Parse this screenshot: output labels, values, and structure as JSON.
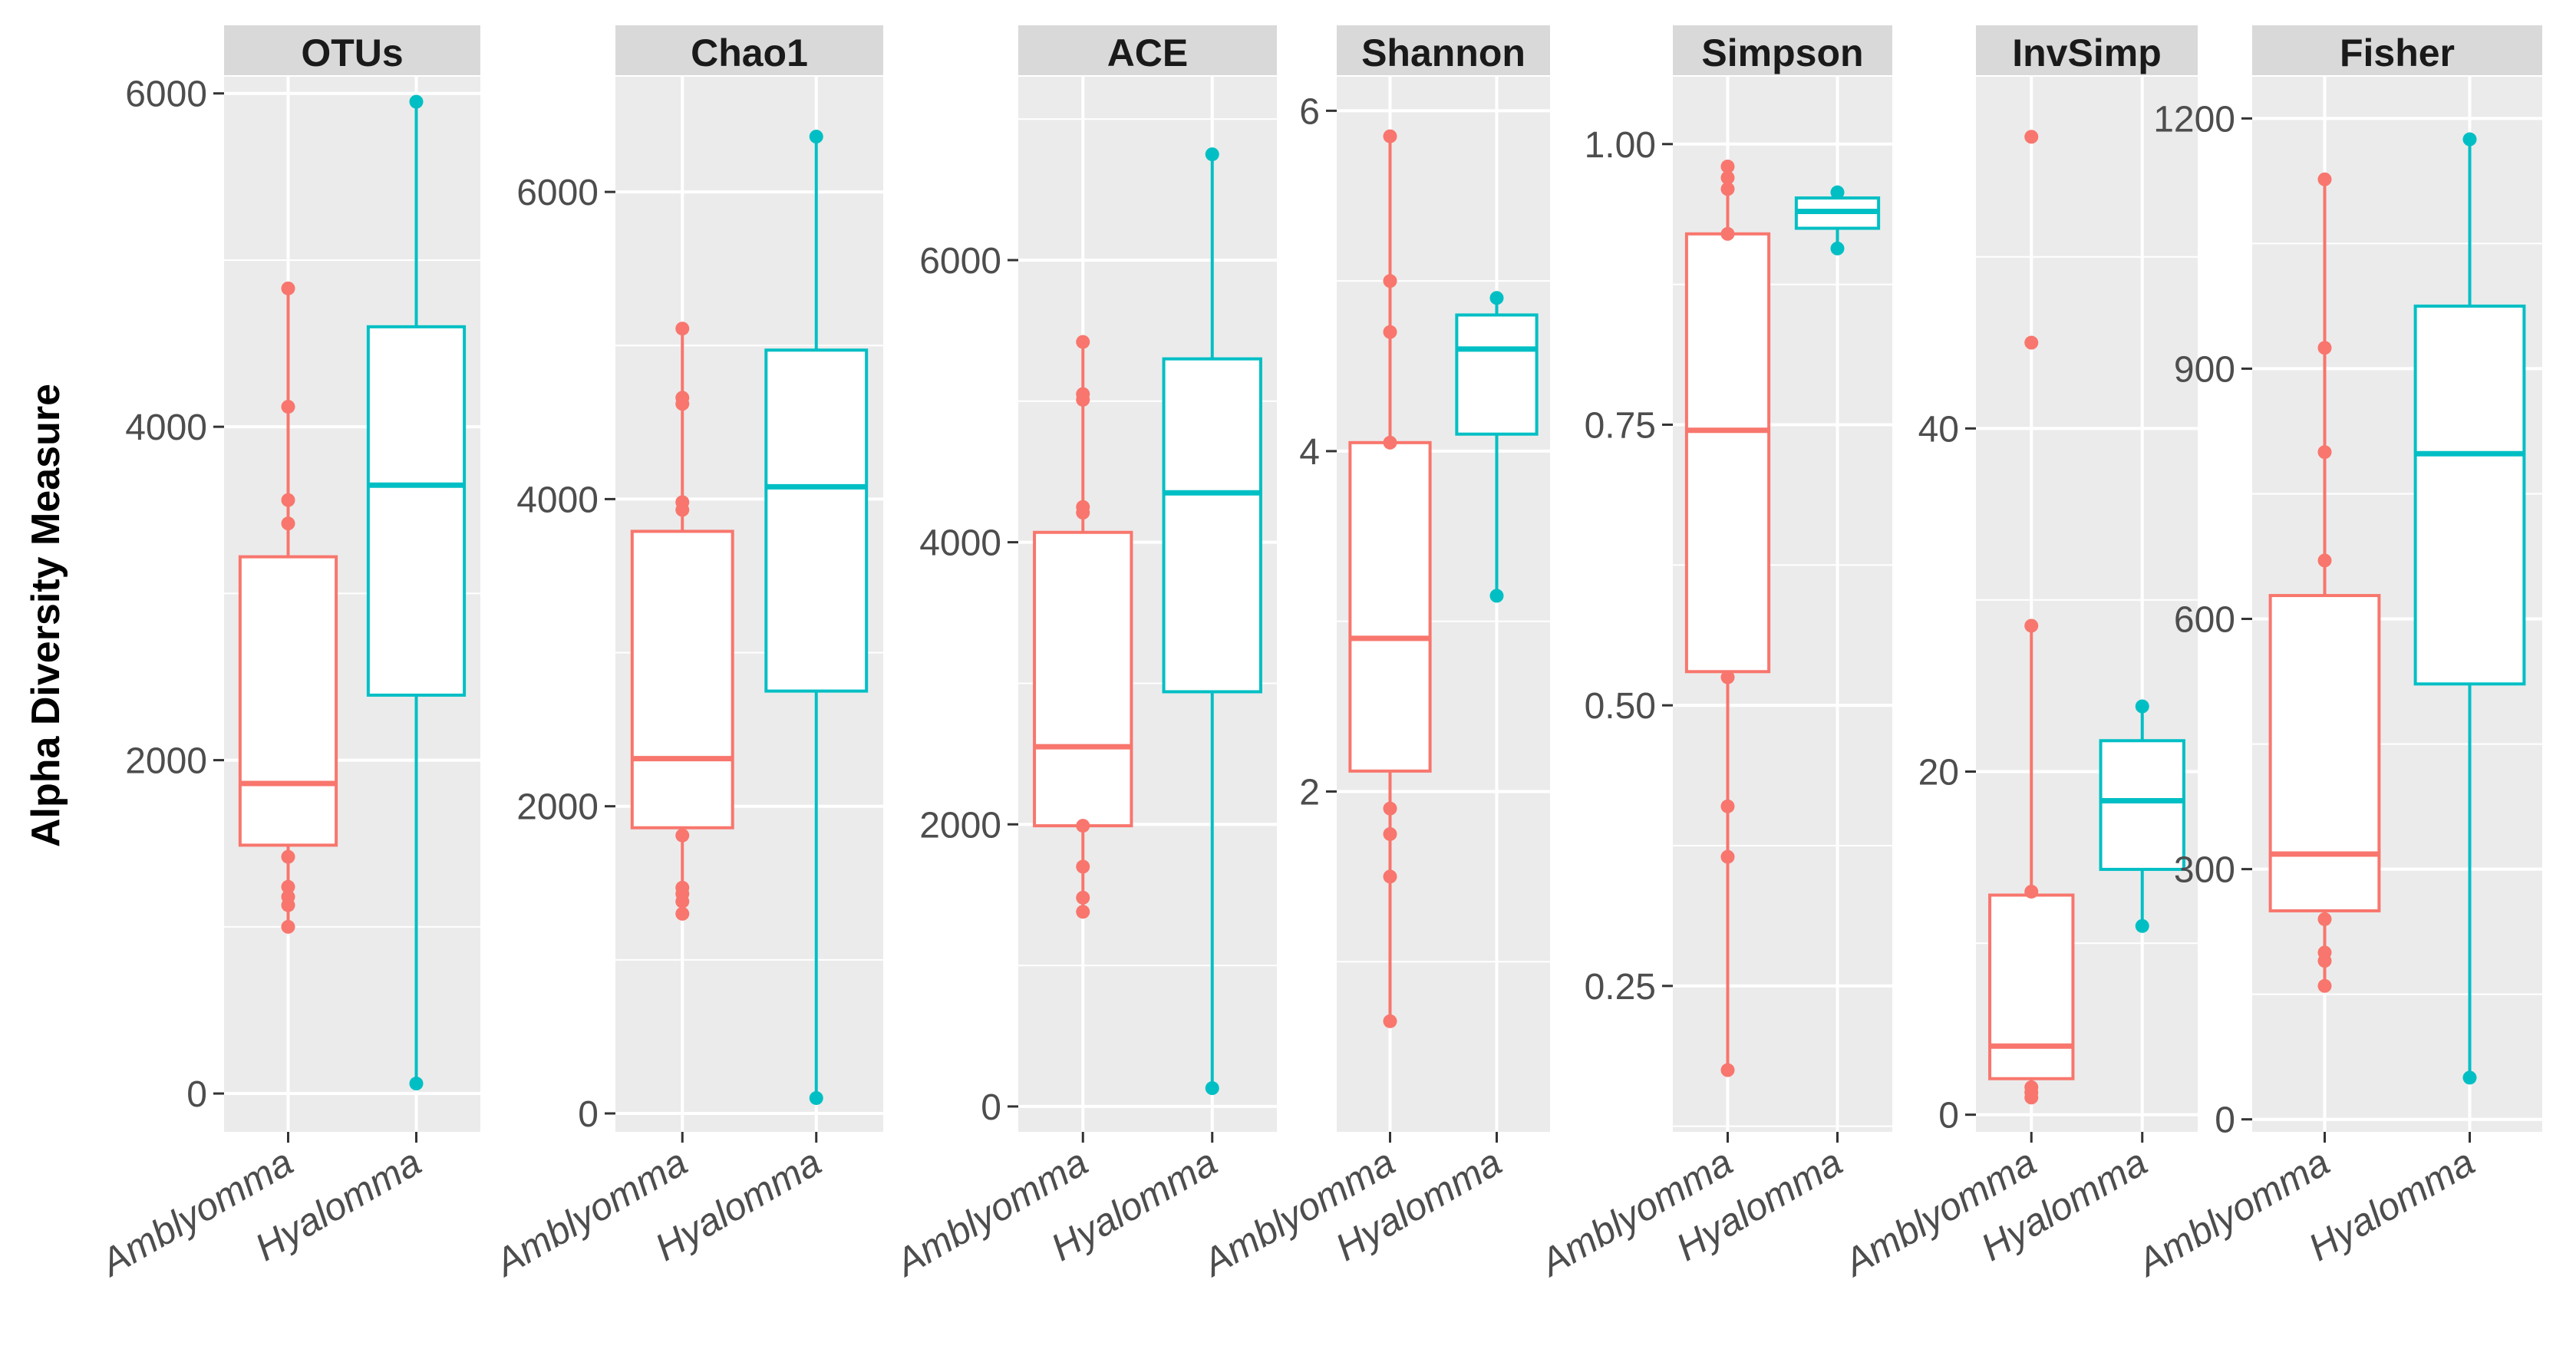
{
  "chart_data": {
    "type": "boxplot",
    "ylabel": "Alpha Diversity Measure",
    "groups": [
      "Amblyomma",
      "Hyalomma"
    ],
    "colors": {
      "Amblyomma": "#F8766D",
      "Hyalomma": "#00BFC4"
    },
    "panels": [
      {
        "title": "OTUs",
        "ylim": [
          -230,
          6100
        ],
        "ticks": [
          {
            "value": 0,
            "label": "0"
          },
          {
            "value": 2000,
            "label": "2000"
          },
          {
            "value": 4000,
            "label": "4000"
          },
          {
            "value": 6000,
            "label": "6000"
          }
        ],
        "boxes": [
          {
            "group": "Amblyomma",
            "q1": 1490,
            "median": 1860,
            "q3": 3220,
            "whisker_low": 1000,
            "whisker_high": 4830,
            "points": [
              1000,
              1130,
              1180,
              1240,
              1420,
              3420,
              3560,
              4120,
              4830
            ]
          },
          {
            "group": "Hyalomma",
            "q1": 2390,
            "median": 3650,
            "q3": 4600,
            "whisker_low": 60,
            "whisker_high": 5950,
            "points": [
              60,
              5950
            ]
          }
        ]
      },
      {
        "title": "Chao1",
        "ylim": [
          -120,
          6750
        ],
        "ticks": [
          {
            "value": 0,
            "label": "0"
          },
          {
            "value": 2000,
            "label": "2000"
          },
          {
            "value": 4000,
            "label": "4000"
          },
          {
            "value": 6000,
            "label": "6000"
          }
        ],
        "boxes": [
          {
            "group": "Amblyomma",
            "q1": 1860,
            "median": 2310,
            "q3": 3790,
            "whisker_low": 1300,
            "whisker_high": 5110,
            "points": [
              1300,
              1380,
              1430,
              1470,
              1810,
              3930,
              3980,
              4620,
              4660,
              5110
            ]
          },
          {
            "group": "Hyalomma",
            "q1": 2750,
            "median": 4080,
            "q3": 4970,
            "whisker_low": 100,
            "whisker_high": 6360,
            "points": [
              100,
              6360
            ]
          }
        ]
      },
      {
        "title": "ACE",
        "ylim": [
          -180,
          7300
        ],
        "ticks": [
          {
            "value": 0,
            "label": "0"
          },
          {
            "value": 2000,
            "label": "2000"
          },
          {
            "value": 4000,
            "label": "4000"
          },
          {
            "value": 6000,
            "label": "6000"
          }
        ],
        "boxes": [
          {
            "group": "Amblyomma",
            "q1": 1990,
            "median": 2550,
            "q3": 4070,
            "whisker_low": 1380,
            "whisker_high": 5420,
            "points": [
              1380,
              1480,
              1700,
              1990,
              4210,
              4250,
              5010,
              5050,
              5420
            ]
          },
          {
            "group": "Hyalomma",
            "q1": 2940,
            "median": 4350,
            "q3": 5300,
            "whisker_low": 130,
            "whisker_high": 6750,
            "points": [
              130,
              6750
            ]
          }
        ]
      },
      {
        "title": "Shannon",
        "ylim": [
          0.0,
          6.2
        ],
        "ticks": [
          {
            "value": 2,
            "label": "2"
          },
          {
            "value": 4,
            "label": "4"
          },
          {
            "value": 6,
            "label": "6"
          }
        ],
        "boxes": [
          {
            "group": "Amblyomma",
            "q1": 2.12,
            "median": 2.9,
            "q3": 4.05,
            "whisker_low": 0.65,
            "whisker_high": 5.85,
            "points": [
              0.65,
              1.5,
              1.75,
              1.9,
              4.05,
              4.7,
              5.0,
              5.85
            ]
          },
          {
            "group": "Hyalomma",
            "q1": 4.1,
            "median": 4.6,
            "q3": 4.8,
            "whisker_low": 3.15,
            "whisker_high": 4.9,
            "points": [
              3.15,
              4.9
            ]
          }
        ]
      },
      {
        "title": "Simpson",
        "ylim": [
          0.12,
          1.06
        ],
        "ticks": [
          {
            "value": 0.25,
            "label": "0.25"
          },
          {
            "value": 0.5,
            "label": "0.50"
          },
          {
            "value": 0.75,
            "label": "0.75"
          },
          {
            "value": 1.0,
            "label": "1.00"
          }
        ],
        "boxes": [
          {
            "group": "Amblyomma",
            "q1": 0.53,
            "median": 0.745,
            "q3": 0.92,
            "whisker_low": 0.175,
            "whisker_high": 0.98,
            "points": [
              0.175,
              0.365,
              0.41,
              0.525,
              0.92,
              0.96,
              0.97,
              0.98
            ]
          },
          {
            "group": "Hyalomma",
            "q1": 0.925,
            "median": 0.94,
            "q3": 0.952,
            "whisker_low": 0.907,
            "whisker_high": 0.957,
            "points": [
              0.907,
              0.957
            ]
          }
        ]
      },
      {
        "title": "InvSimp",
        "ylim": [
          -1.0,
          60.5
        ],
        "ticks": [
          {
            "value": 0,
            "label": "0"
          },
          {
            "value": 20,
            "label": "20"
          },
          {
            "value": 40,
            "label": "40"
          }
        ],
        "boxes": [
          {
            "group": "Amblyomma",
            "q1": 2.1,
            "median": 4.0,
            "q3": 12.8,
            "whisker_low": 1.0,
            "whisker_high": 28.5,
            "points": [
              1.0,
              1.3,
              1.6,
              13.0,
              28.5,
              45.0,
              57.0
            ]
          },
          {
            "group": "Hyalomma",
            "q1": 14.3,
            "median": 18.3,
            "q3": 21.8,
            "whisker_low": 11.0,
            "whisker_high": 23.8,
            "points": [
              11.0,
              23.8
            ]
          }
        ]
      },
      {
        "title": "Fisher",
        "ylim": [
          -15,
          1250
        ],
        "ticks": [
          {
            "value": 0,
            "label": "0"
          },
          {
            "value": 300,
            "label": "300"
          },
          {
            "value": 600,
            "label": "600"
          },
          {
            "value": 900,
            "label": "900"
          },
          {
            "value": 1200,
            "label": "1200"
          }
        ],
        "boxes": [
          {
            "group": "Amblyomma",
            "q1": 250,
            "median": 318,
            "q3": 628,
            "whisker_low": 160,
            "whisker_high": 1127,
            "points": [
              160,
              190,
              200,
              240,
              670,
              800,
              925,
              1127
            ]
          },
          {
            "group": "Hyalomma",
            "q1": 522,
            "median": 798,
            "q3": 975,
            "whisker_low": 50,
            "whisker_high": 1175,
            "points": [
              50,
              1175
            ]
          }
        ]
      }
    ]
  }
}
